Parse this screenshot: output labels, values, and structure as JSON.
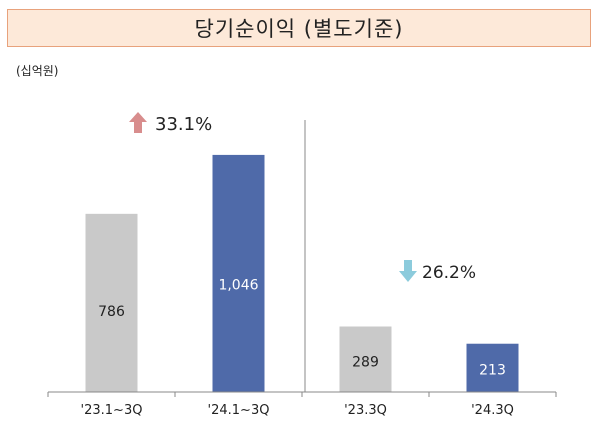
{
  "title": "당기순이익 (별도기준)",
  "unit": "(십억원)",
  "colors": {
    "grey_bar": "#c9c9c9",
    "blue_bar": "#4f6aa9",
    "up_arrow": "#d88d8d",
    "down_arrow": "#8ccbdc",
    "title_bg": "#fde9d9",
    "title_border": "#e8a27c"
  },
  "chart_data": {
    "type": "bar",
    "categories": [
      "'23.1~3Q",
      "'24.1~3Q",
      "'23.3Q",
      "'24.3Q"
    ],
    "values": [
      786,
      1046,
      289,
      213
    ],
    "value_labels": [
      "786",
      "1,046",
      "289",
      "213"
    ],
    "ylim": [
      0,
      1200
    ],
    "grid": false,
    "annotations": [
      {
        "text": "33.1%",
        "direction": "up"
      },
      {
        "text": "26.2%",
        "direction": "down"
      }
    ]
  }
}
